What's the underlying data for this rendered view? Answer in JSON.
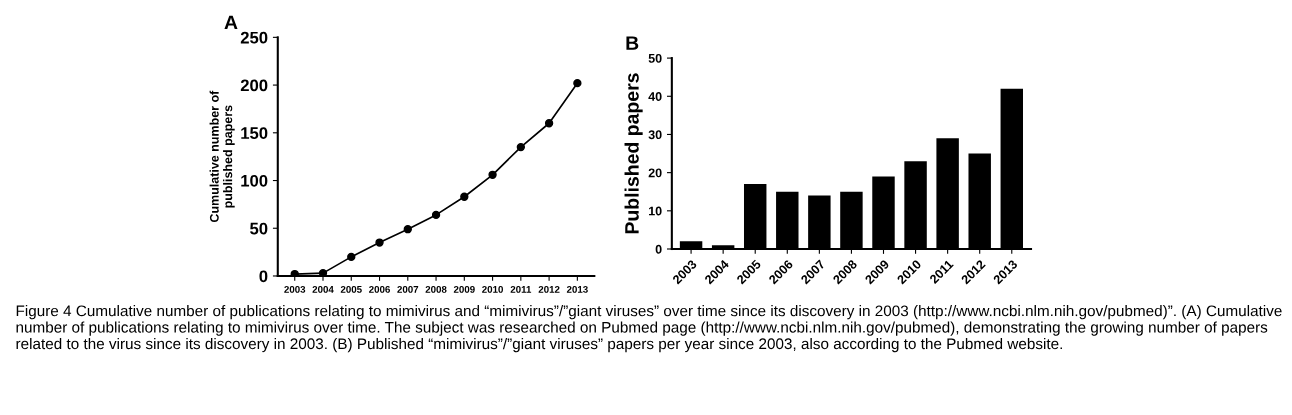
{
  "chart_data": [
    {
      "type": "line",
      "title": "A",
      "ylabel": "Cumulative number of\npublished papers",
      "categories": [
        "2003",
        "2004",
        "2005",
        "2006",
        "2007",
        "2008",
        "2009",
        "2010",
        "2011",
        "2012",
        "2013"
      ],
      "series": [
        {
          "color": "#000000",
          "values": [
            2,
            3,
            20,
            35,
            49,
            64,
            83,
            106,
            135,
            160,
            202
          ]
        }
      ],
      "ylim": [
        0,
        250
      ],
      "yticks": [
        0,
        50,
        100,
        150,
        200,
        250
      ],
      "marker": "circle",
      "line_style": "solid",
      "grid": false,
      "legend": false,
      "annotations": [
        "Figure 4 Cumulative number of publications relating to mimivirus and “mimivirus”/”giant viruses” over time since its discovery in 2003 (http://www.ncbi.nlm.nih.gov/pubmed)”. (A) Cumulative number of publications relating to mimivirus over time. The subject was researched on Pubmed page (http://www.ncbi.nlm.nih.gov/pubmed), demonstrating the growing number of papers related to the virus since its discovery in 2003. (B) Published “mimivirus”/”giant viruses” papers per year since 2003, also according to the Pubmed website."
      ]
    },
    {
      "type": "bar",
      "title": "B",
      "ylabel": "Published papers",
      "categories": [
        "2003",
        "2004",
        "2005",
        "2006",
        "2007",
        "2008",
        "2009",
        "2010",
        "2011",
        "2012",
        "2013"
      ],
      "series": [
        {
          "color": "#000000",
          "values": [
            2,
            1,
            17,
            15,
            14,
            15,
            19,
            23,
            29,
            25,
            42
          ]
        }
      ],
      "ylim": [
        0,
        50
      ],
      "yticks": [
        0,
        10,
        20,
        30,
        40,
        50
      ],
      "grid": false,
      "legend": false
    }
  ]
}
